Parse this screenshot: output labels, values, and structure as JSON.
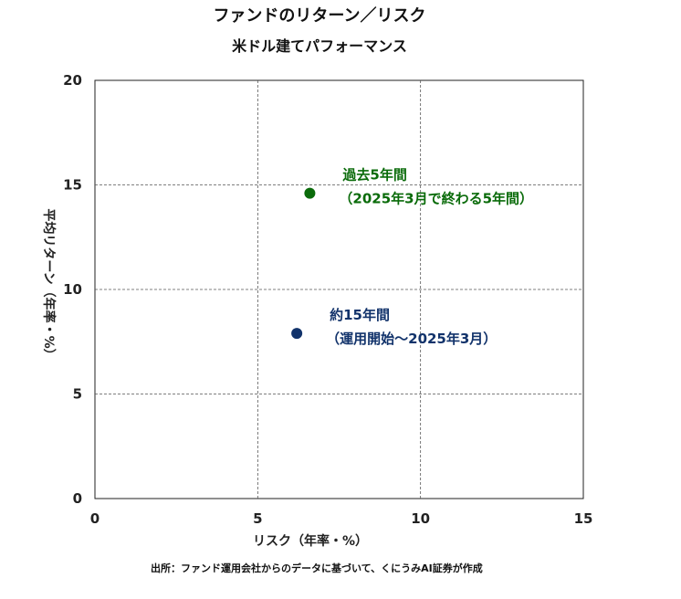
{
  "chart_data": {
    "type": "scatter",
    "title": "ファンドのリターン／リスク",
    "subtitle": "米ドル建てパフォーマンス",
    "xlabel": "リスク（年率・%）",
    "ylabel": "平均リターン（年率・%）",
    "xlim": [
      0,
      15
    ],
    "ylim": [
      0,
      20
    ],
    "x_ticks": [
      0,
      5,
      10,
      15
    ],
    "y_ticks": [
      0,
      5,
      10,
      15,
      20
    ],
    "grid": true,
    "points": [
      {
        "x": 6.6,
        "y": 14.6,
        "color": "#0a6b0a",
        "label_line1": "過去5年間",
        "label_line2": "（2025年3月で終わる5年間）"
      },
      {
        "x": 6.2,
        "y": 7.9,
        "color": "#12336b",
        "label_line1": "約15年間",
        "label_line2": "（運用開始～2025年3月）"
      }
    ]
  },
  "source": "出所：ファンド運用会社からのデータに基づいて、くにうみAI証券が作成"
}
